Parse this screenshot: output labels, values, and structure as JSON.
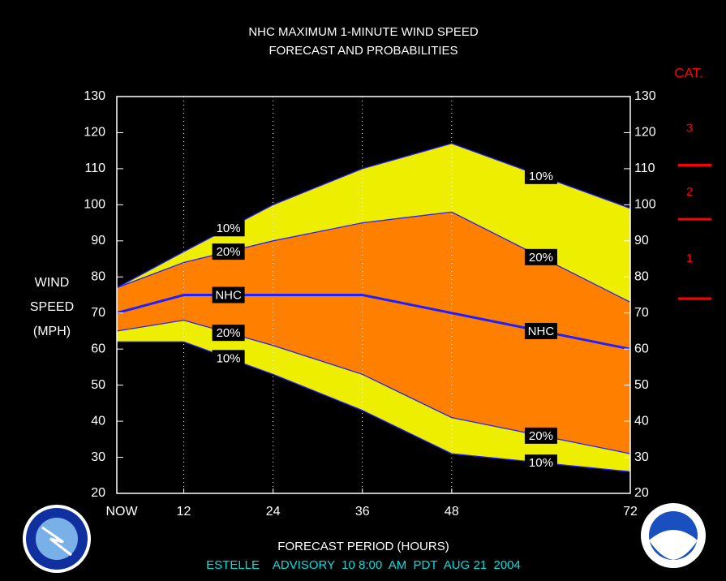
{
  "chart_data": {
    "type": "band",
    "title": "NHC MAXIMUM 1-MINUTE WIND SPEED",
    "subtitle": "FORECAST AND PROBABILITIES",
    "y_label": [
      "WIND",
      "SPEED",
      "(MPH)"
    ],
    "x_label": "FORECAST PERIOD (HOURS)",
    "footer": "ESTELLE    ADVISORY  10 8:00  AM  PDT  AUG 21  2004",
    "x": [
      3,
      12,
      24,
      36,
      48,
      72
    ],
    "xlim": [
      3,
      72
    ],
    "xticks": [
      {
        "value": 3,
        "label": "NOW"
      },
      12,
      24,
      36,
      48,
      72
    ],
    "ylim": [
      20,
      130
    ],
    "yticks": [
      20,
      30,
      40,
      50,
      60,
      70,
      80,
      90,
      100,
      110,
      120,
      130
    ],
    "y2lim": [
      20,
      130
    ],
    "y2ticks": [
      20,
      30,
      40,
      50,
      60,
      70,
      80,
      90,
      100,
      110,
      120,
      130
    ],
    "grid": true,
    "series": [
      {
        "name": "10%",
        "color": "#eeee00",
        "values": [
          77,
          87,
          100,
          110,
          117,
          99
        ]
      },
      {
        "name": "20%",
        "color": "#ff8000",
        "values": [
          77,
          84,
          90,
          95,
          98,
          73
        ]
      },
      {
        "name": "NHC",
        "color": "#2020ff",
        "values": [
          70,
          75,
          75,
          75,
          70,
          60
        ]
      },
      {
        "name": "20%",
        "color": "#ff8000",
        "values": [
          65,
          68,
          61,
          53,
          41,
          31
        ]
      },
      {
        "name": "10%",
        "color": "#eeee00",
        "values": [
          62,
          62,
          53,
          43,
          31,
          26
        ]
      }
    ],
    "category_scale": {
      "title": "CAT.",
      "labels": [
        "1",
        "2",
        "3"
      ],
      "thresholds": [
        74,
        96,
        111
      ],
      "color": "#ff0000"
    }
  }
}
